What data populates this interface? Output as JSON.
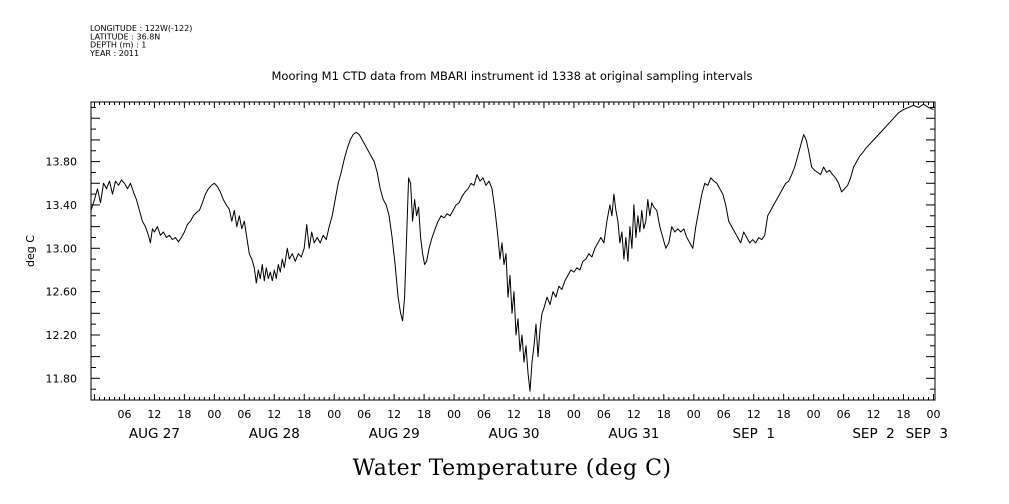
{
  "header": {
    "meta_lines": [
      "LONGITUDE : 122W(-122)",
      "LATITUDE : 36.8N",
      "DEPTH (m) : 1",
      "YEAR : 2011"
    ]
  },
  "chart_data": {
    "type": "line",
    "title": "Mooring M1 CTD data from MBARI instrument id 1338 at original sampling intervals",
    "xlabel": "Water Temperature (deg C)",
    "ylabel": "deg C",
    "x_units": "hours since Aug 27 2011 00:00",
    "xlim": [
      -0.7,
      168.3
    ],
    "ylim": [
      11.6,
      14.35
    ],
    "y_ticks": [
      11.8,
      12.2,
      12.6,
      13.0,
      13.4,
      13.8
    ],
    "y_tick_labels": [
      "11.80",
      "12.20",
      "12.60",
      "13.00",
      "13.40",
      "13.80"
    ],
    "hour_tick_labels": [
      "06",
      "12",
      "18",
      "00"
    ],
    "day_labels": [
      "AUG 27",
      "AUG 28",
      "AUG 29",
      "AUG 30",
      "AUG 31",
      "SEP  1",
      "SEP  2",
      "SEP  3"
    ],
    "grid": false,
    "series": [
      {
        "color": "#000000",
        "points": [
          [
            -0.7,
            13.35
          ],
          [
            0,
            13.45
          ],
          [
            0.6,
            13.55
          ],
          [
            1.2,
            13.42
          ],
          [
            1.8,
            13.6
          ],
          [
            2.4,
            13.55
          ],
          [
            3,
            13.62
          ],
          [
            3.6,
            13.5
          ],
          [
            4.2,
            13.62
          ],
          [
            4.8,
            13.58
          ],
          [
            5.4,
            13.63
          ],
          [
            6,
            13.6
          ],
          [
            6.6,
            13.55
          ],
          [
            7.2,
            13.6
          ],
          [
            7.8,
            13.52
          ],
          [
            8.4,
            13.45
          ],
          [
            9,
            13.35
          ],
          [
            9.6,
            13.25
          ],
          [
            10.2,
            13.2
          ],
          [
            10.8,
            13.12
          ],
          [
            11.2,
            13.05
          ],
          [
            11.6,
            13.18
          ],
          [
            12,
            13.15
          ],
          [
            12.6,
            13.2
          ],
          [
            13.2,
            13.12
          ],
          [
            13.8,
            13.15
          ],
          [
            14.4,
            13.1
          ],
          [
            15,
            13.12
          ],
          [
            15.6,
            13.08
          ],
          [
            16.2,
            13.1
          ],
          [
            16.8,
            13.06
          ],
          [
            17.4,
            13.1
          ],
          [
            18,
            13.15
          ],
          [
            18.6,
            13.22
          ],
          [
            19.2,
            13.25
          ],
          [
            19.8,
            13.3
          ],
          [
            20.4,
            13.33
          ],
          [
            21,
            13.35
          ],
          [
            21.6,
            13.42
          ],
          [
            22.2,
            13.5
          ],
          [
            22.8,
            13.55
          ],
          [
            23.4,
            13.58
          ],
          [
            24,
            13.6
          ],
          [
            24.6,
            13.57
          ],
          [
            25.2,
            13.52
          ],
          [
            25.8,
            13.45
          ],
          [
            26.4,
            13.4
          ],
          [
            27,
            13.36
          ],
          [
            27.5,
            13.25
          ],
          [
            28,
            13.35
          ],
          [
            28.5,
            13.2
          ],
          [
            29,
            13.3
          ],
          [
            29.5,
            13.18
          ],
          [
            30,
            13.25
          ],
          [
            30.5,
            13.1
          ],
          [
            31,
            12.95
          ],
          [
            31.5,
            12.9
          ],
          [
            32,
            12.82
          ],
          [
            32.4,
            12.68
          ],
          [
            32.8,
            12.8
          ],
          [
            33.2,
            12.72
          ],
          [
            33.6,
            12.85
          ],
          [
            34,
            12.7
          ],
          [
            34.4,
            12.82
          ],
          [
            34.8,
            12.72
          ],
          [
            35.2,
            12.78
          ],
          [
            35.6,
            12.7
          ],
          [
            36,
            12.8
          ],
          [
            36.4,
            12.72
          ],
          [
            36.8,
            12.85
          ],
          [
            37.2,
            12.78
          ],
          [
            37.6,
            12.9
          ],
          [
            38,
            12.82
          ],
          [
            38.6,
            13.0
          ],
          [
            39,
            12.9
          ],
          [
            39.6,
            12.95
          ],
          [
            40.2,
            12.88
          ],
          [
            40.8,
            12.95
          ],
          [
            41.4,
            12.92
          ],
          [
            42,
            13.0
          ],
          [
            42.5,
            13.22
          ],
          [
            43,
            13.0
          ],
          [
            43.5,
            13.15
          ],
          [
            44,
            13.05
          ],
          [
            44.6,
            13.1
          ],
          [
            45.2,
            13.05
          ],
          [
            45.8,
            13.12
          ],
          [
            46.4,
            13.08
          ],
          [
            47,
            13.2
          ],
          [
            47.6,
            13.3
          ],
          [
            48.2,
            13.45
          ],
          [
            48.8,
            13.6
          ],
          [
            49.4,
            13.7
          ],
          [
            50,
            13.82
          ],
          [
            50.6,
            13.92
          ],
          [
            51.2,
            14.0
          ],
          [
            51.8,
            14.05
          ],
          [
            52.4,
            14.07
          ],
          [
            53,
            14.05
          ],
          [
            53.6,
            14.0
          ],
          [
            54.2,
            13.95
          ],
          [
            54.8,
            13.9
          ],
          [
            55.4,
            13.85
          ],
          [
            56,
            13.8
          ],
          [
            56.6,
            13.7
          ],
          [
            57.2,
            13.55
          ],
          [
            57.8,
            13.45
          ],
          [
            58.4,
            13.4
          ],
          [
            59,
            13.3
          ],
          [
            59.6,
            13.1
          ],
          [
            60.2,
            12.85
          ],
          [
            60.8,
            12.55
          ],
          [
            61.3,
            12.4
          ],
          [
            61.7,
            12.33
          ],
          [
            62.1,
            12.55
          ],
          [
            62.5,
            13.1
          ],
          [
            62.9,
            13.65
          ],
          [
            63.3,
            13.6
          ],
          [
            63.7,
            13.25
          ],
          [
            64.1,
            13.45
          ],
          [
            64.5,
            13.3
          ],
          [
            64.9,
            13.38
          ],
          [
            65.3,
            13.1
          ],
          [
            65.7,
            12.95
          ],
          [
            66.1,
            12.85
          ],
          [
            66.5,
            12.88
          ],
          [
            67,
            13.0
          ],
          [
            67.6,
            13.1
          ],
          [
            68.2,
            13.18
          ],
          [
            68.8,
            13.25
          ],
          [
            69.4,
            13.3
          ],
          [
            70,
            13.28
          ],
          [
            70.6,
            13.32
          ],
          [
            71.2,
            13.3
          ],
          [
            71.8,
            13.35
          ],
          [
            72.4,
            13.4
          ],
          [
            73,
            13.42
          ],
          [
            73.6,
            13.48
          ],
          [
            74.2,
            13.52
          ],
          [
            74.8,
            13.55
          ],
          [
            75.4,
            13.6
          ],
          [
            76,
            13.58
          ],
          [
            76.6,
            13.68
          ],
          [
            77.2,
            13.62
          ],
          [
            77.8,
            13.65
          ],
          [
            78.4,
            13.58
          ],
          [
            79,
            13.62
          ],
          [
            79.6,
            13.55
          ],
          [
            80.2,
            13.35
          ],
          [
            80.8,
            13.1
          ],
          [
            81.2,
            12.9
          ],
          [
            81.6,
            13.05
          ],
          [
            82,
            12.85
          ],
          [
            82.4,
            12.95
          ],
          [
            82.8,
            12.55
          ],
          [
            83.2,
            12.75
          ],
          [
            83.6,
            12.4
          ],
          [
            84,
            12.6
          ],
          [
            84.4,
            12.2
          ],
          [
            84.8,
            12.35
          ],
          [
            85.2,
            12.05
          ],
          [
            85.6,
            12.2
          ],
          [
            86,
            11.95
          ],
          [
            86.4,
            12.1
          ],
          [
            86.8,
            11.85
          ],
          [
            87.2,
            11.68
          ],
          [
            87.6,
            11.95
          ],
          [
            88,
            12.1
          ],
          [
            88.4,
            12.3
          ],
          [
            88.8,
            12.0
          ],
          [
            89.2,
            12.25
          ],
          [
            89.6,
            12.4
          ],
          [
            90,
            12.45
          ],
          [
            90.6,
            12.55
          ],
          [
            91.2,
            12.48
          ],
          [
            91.8,
            12.6
          ],
          [
            92.4,
            12.55
          ],
          [
            93,
            12.65
          ],
          [
            93.6,
            12.62
          ],
          [
            94.2,
            12.7
          ],
          [
            94.8,
            12.75
          ],
          [
            95.4,
            12.8
          ],
          [
            96,
            12.78
          ],
          [
            96.6,
            12.82
          ],
          [
            97.2,
            12.8
          ],
          [
            97.8,
            12.88
          ],
          [
            98.4,
            12.9
          ],
          [
            99,
            12.95
          ],
          [
            99.6,
            12.92
          ],
          [
            100.2,
            13.0
          ],
          [
            100.8,
            13.05
          ],
          [
            101.4,
            13.1
          ],
          [
            102,
            13.05
          ],
          [
            102.6,
            13.25
          ],
          [
            103.2,
            13.4
          ],
          [
            103.6,
            13.3
          ],
          [
            104,
            13.5
          ],
          [
            104.4,
            13.35
          ],
          [
            104.8,
            13.25
          ],
          [
            105.2,
            13.05
          ],
          [
            105.6,
            13.15
          ],
          [
            106,
            12.9
          ],
          [
            106.4,
            13.1
          ],
          [
            106.8,
            12.88
          ],
          [
            107.2,
            13.2
          ],
          [
            107.6,
            13.0
          ],
          [
            108,
            13.4
          ],
          [
            108.4,
            13.1
          ],
          [
            108.8,
            13.3
          ],
          [
            109.2,
            13.15
          ],
          [
            109.6,
            13.35
          ],
          [
            110,
            13.18
          ],
          [
            110.4,
            13.25
          ],
          [
            110.8,
            13.45
          ],
          [
            111.2,
            13.3
          ],
          [
            111.6,
            13.42
          ],
          [
            112,
            13.38
          ],
          [
            112.6,
            13.35
          ],
          [
            113.2,
            13.2
          ],
          [
            113.8,
            13.1
          ],
          [
            114.4,
            13.0
          ],
          [
            115,
            13.05
          ],
          [
            115.6,
            13.2
          ],
          [
            116.2,
            13.15
          ],
          [
            116.8,
            13.18
          ],
          [
            117.4,
            13.15
          ],
          [
            118,
            13.18
          ],
          [
            118.6,
            13.1
          ],
          [
            119.2,
            13.05
          ],
          [
            119.8,
            13.0
          ],
          [
            120.4,
            13.2
          ],
          [
            121,
            13.35
          ],
          [
            121.6,
            13.5
          ],
          [
            122.2,
            13.6
          ],
          [
            122.8,
            13.58
          ],
          [
            123.4,
            13.65
          ],
          [
            124,
            13.62
          ],
          [
            124.6,
            13.6
          ],
          [
            125.2,
            13.55
          ],
          [
            125.8,
            13.5
          ],
          [
            126.4,
            13.4
          ],
          [
            127,
            13.25
          ],
          [
            127.6,
            13.2
          ],
          [
            128.2,
            13.15
          ],
          [
            128.8,
            13.1
          ],
          [
            129.4,
            13.05
          ],
          [
            130,
            13.15
          ],
          [
            130.6,
            13.1
          ],
          [
            131.2,
            13.05
          ],
          [
            131.8,
            13.08
          ],
          [
            132.4,
            13.05
          ],
          [
            133,
            13.1
          ],
          [
            133.6,
            13.08
          ],
          [
            134.2,
            13.12
          ],
          [
            134.8,
            13.3
          ],
          [
            135.4,
            13.35
          ],
          [
            136,
            13.4
          ],
          [
            136.6,
            13.45
          ],
          [
            137.2,
            13.5
          ],
          [
            137.8,
            13.55
          ],
          [
            138.4,
            13.6
          ],
          [
            139,
            13.62
          ],
          [
            139.6,
            13.68
          ],
          [
            140.2,
            13.75
          ],
          [
            140.8,
            13.85
          ],
          [
            141.4,
            13.95
          ],
          [
            142,
            14.05
          ],
          [
            142.5,
            14.0
          ],
          [
            143,
            13.9
          ],
          [
            143.6,
            13.75
          ],
          [
            144.2,
            13.72
          ],
          [
            144.8,
            13.7
          ],
          [
            145.4,
            13.68
          ],
          [
            146,
            13.75
          ],
          [
            146.6,
            13.7
          ],
          [
            147.2,
            13.72
          ],
          [
            147.8,
            13.68
          ],
          [
            148.4,
            13.65
          ],
          [
            149,
            13.6
          ],
          [
            149.6,
            13.52
          ],
          [
            150.2,
            13.55
          ],
          [
            150.8,
            13.58
          ],
          [
            151.4,
            13.65
          ],
          [
            152,
            13.75
          ],
          [
            152.6,
            13.8
          ],
          [
            153.2,
            13.85
          ],
          [
            153.8,
            13.88
          ],
          [
            154.4,
            13.92
          ],
          [
            155,
            13.95
          ],
          [
            156,
            14.0
          ],
          [
            157,
            14.05
          ],
          [
            158,
            14.1
          ],
          [
            159,
            14.15
          ],
          [
            160,
            14.2
          ],
          [
            161,
            14.25
          ],
          [
            162,
            14.28
          ],
          [
            163,
            14.3
          ],
          [
            164,
            14.32
          ],
          [
            165,
            14.3
          ],
          [
            166,
            14.33
          ],
          [
            167,
            14.3
          ],
          [
            168,
            14.28
          ]
        ]
      }
    ]
  }
}
